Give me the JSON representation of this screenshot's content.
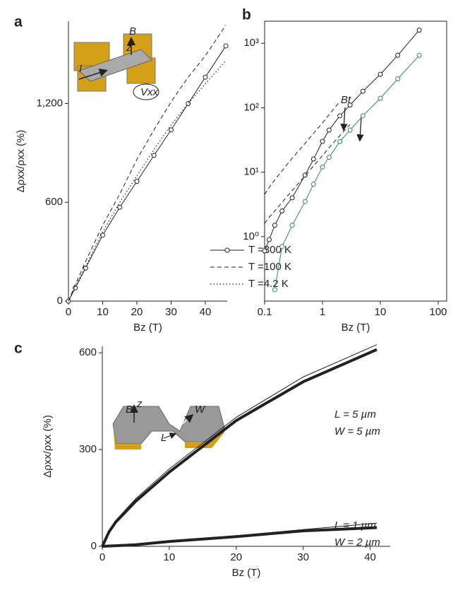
{
  "chart_data": [
    {
      "type": "line",
      "panel_label": "a",
      "xlabel": "Bz (T)",
      "ylabel": "Δρxx/ρxx (%)",
      "x": [
        0,
        2,
        5,
        10,
        15,
        20,
        25,
        30,
        35,
        40,
        46
      ],
      "series": [
        {
          "name": "T =300 K",
          "color": "#222222",
          "style": "circles",
          "values": [
            0,
            80,
            200,
            400,
            570,
            727,
            885,
            1040,
            1200,
            1360,
            1550
          ]
        },
        {
          "name": "T =100 K",
          "color": "#222222",
          "style": "dashed",
          "values": [
            0,
            100,
            240,
            460,
            650,
            860,
            1040,
            1210,
            1360,
            1490,
            1676
          ]
        },
        {
          "name": "T =4.2 K",
          "color": "#222222",
          "style": "dotted",
          "values": [
            0,
            90,
            210,
            420,
            600,
            760,
            920,
            1070,
            1200,
            1320,
            1460
          ]
        }
      ],
      "xlim": [
        0,
        46.4
      ],
      "ylim": [
        0,
        1700
      ],
      "xticks": [
        0,
        10,
        20,
        30,
        40
      ],
      "yticks": [
        0,
        600,
        {
          "value": 1200,
          "label": "1,200"
        }
      ],
      "legend": "lower right",
      "annotations": [
        "B",
        "z",
        "I",
        "Vxx"
      ]
    },
    {
      "type": "line",
      "panel_label": "b",
      "xlabel": "Bz (T)",
      "xscale": "log",
      "yscale": "log",
      "x": [
        0.1,
        0.12,
        0.15,
        0.2,
        0.3,
        0.5,
        0.7,
        1,
        1.3,
        2,
        3,
        5,
        10,
        20,
        47
      ],
      "series": [
        {
          "color": "#222222",
          "style": "circles",
          "values": [
            0.6,
            0.9,
            1.5,
            2.5,
            4,
            9,
            16,
            30,
            45,
            75,
            110,
            180,
            330,
            650,
            1600
          ]
        },
        {
          "color": "#2e8b57",
          "style": "circles",
          "values": [
            null,
            null,
            0.15,
            0.7,
            1.5,
            3.5,
            6.5,
            12,
            17,
            30,
            45,
            75,
            140,
            280,
            650
          ]
        },
        {
          "color": "#222222",
          "style": "dashed",
          "values": [
            4.5,
            5.8,
            7.6,
            10.5,
            16.5,
            28,
            40,
            58,
            78,
            125,
            null,
            null,
            null,
            null,
            null
          ]
        },
        {
          "color": "#222222",
          "style": "dashed",
          "values": [
            1.6,
            2,
            2.5,
            3.4,
            5.2,
            8.8,
            12.5,
            18,
            24,
            37,
            55,
            null,
            null,
            null,
            null
          ]
        }
      ],
      "xlim": [
        0.1,
        140
      ],
      "ylim": [
        0.1,
        2200
      ],
      "xticks": [
        0.1,
        1,
        10,
        100
      ],
      "yticks": [
        {
          "value": 1,
          "label": "10⁰"
        },
        {
          "value": 10,
          "label": "10¹"
        },
        {
          "value": 100,
          "label": "10²"
        },
        {
          "value": 1000,
          "label": "10³"
        }
      ],
      "annotations": [
        "Bt"
      ]
    },
    {
      "type": "line",
      "panel_label": "c",
      "xlabel": "Bz (T)",
      "ylabel": "Δρxx/ρxx (%)",
      "x": [
        0,
        1,
        2,
        5,
        10,
        20,
        30,
        41
      ],
      "series": [
        {
          "color": "#222222",
          "style": "thin",
          "values": [
            0,
            48,
            80,
            148,
            240,
            400,
            525,
            625
          ]
        },
        {
          "color": "#222222",
          "style": "thick",
          "values": [
            0,
            45,
            75,
            140,
            230,
            390,
            510,
            610
          ]
        },
        {
          "color": "#222222",
          "style": "thin",
          "values": [
            0,
            1,
            2,
            6,
            16,
            33,
            52,
            72
          ]
        },
        {
          "color": "#222222",
          "style": "thick",
          "values": [
            0,
            1,
            2,
            5,
            15,
            30,
            48,
            58
          ]
        }
      ],
      "xlim": [
        0,
        43
      ],
      "ylim": [
        0,
        620
      ],
      "xticks": [
        0,
        10,
        20,
        30,
        40
      ],
      "yticks": [
        0,
        300,
        600
      ],
      "annotations": [
        "B",
        "z",
        "W",
        "L",
        "L = 5 µm",
        "W = 5 µm",
        "L = 1 µm",
        "W = 2 µm"
      ]
    }
  ]
}
